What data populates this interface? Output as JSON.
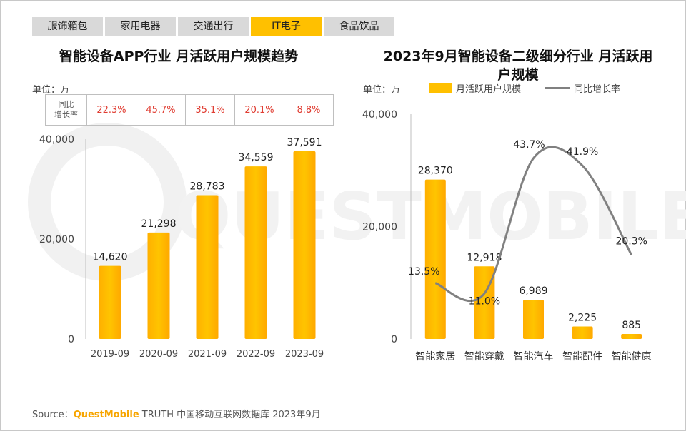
{
  "tabs": [
    {
      "label": "服饰箱包",
      "active": false
    },
    {
      "label": "家用电器",
      "active": false
    },
    {
      "label": "交通出行",
      "active": false
    },
    {
      "label": "IT电子",
      "active": true
    },
    {
      "label": "食品饮品",
      "active": false
    }
  ],
  "watermark": "QUESTMOBILE",
  "colors": {
    "bar": "#ffc000",
    "growth_text": "#e03c31",
    "line": "#808080",
    "active_tab": "#ffc000"
  },
  "left": {
    "title": "智能设备APP行业 月活跃用户规模趋势",
    "unit": "单位：万",
    "growth_header": "同比\n增长率",
    "growth_values": [
      "22.3%",
      "45.7%",
      "35.1%",
      "20.1%",
      "8.8%"
    ]
  },
  "right": {
    "title": "2023年9月智能设备二级细分行业 月活跃用户规模",
    "unit": "单位：万",
    "legend_bar": "月活跃用户规模",
    "legend_line": "同比增长率"
  },
  "chart_data": [
    {
      "type": "bar",
      "title": "智能设备APP行业 月活跃用户规模趋势",
      "categories": [
        "2019-09",
        "2020-09",
        "2021-09",
        "2022-09",
        "2023-09"
      ],
      "values": [
        14620,
        21298,
        28783,
        34559,
        37591
      ],
      "value_labels": [
        "14,620",
        "21,298",
        "28,783",
        "34,559",
        "37,591"
      ],
      "yticks": [
        "0",
        "20,000",
        "40,000"
      ],
      "ylim": [
        0,
        40000
      ],
      "ylabel": "单位：万",
      "grid": false
    },
    {
      "type": "bar",
      "title": "2023年9月智能设备二级细分行业 月活跃用户规模",
      "categories": [
        "智能家居",
        "智能穿戴",
        "智能汽车",
        "智能配件",
        "智能健康"
      ],
      "values": [
        28370,
        12918,
        6989,
        2225,
        885
      ],
      "value_labels": [
        "28,370",
        "12,918",
        "6,989",
        "2,225",
        "885"
      ],
      "growth": [
        13.5,
        11.0,
        43.7,
        41.9,
        20.3
      ],
      "growth_labels": [
        "13.5%",
        "11.0%",
        "43.7%",
        "41.9%",
        "20.3%"
      ],
      "series": [
        {
          "name": "月活跃用户规模",
          "values": [
            28370,
            12918,
            6989,
            2225,
            885
          ]
        },
        {
          "name": "同比增长率",
          "values": [
            13.5,
            11.0,
            43.7,
            41.9,
            20.3
          ]
        }
      ],
      "yticks": [
        "0",
        "20,000",
        "40,000"
      ],
      "ylim": [
        0,
        40000
      ],
      "legend": "top",
      "grid": false
    }
  ],
  "source": {
    "prefix": "Source：",
    "brand": "QuestMobile",
    "rest": " TRUTH 中国移动互联网数据库 2023年9月"
  }
}
